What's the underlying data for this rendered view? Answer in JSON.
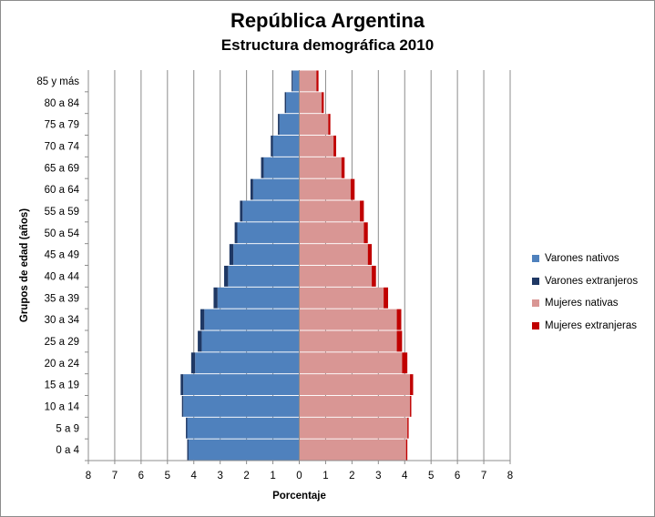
{
  "chart_data": {
    "type": "bar",
    "orientation": "horizontal",
    "stacked": true,
    "title": "República Argentina",
    "subtitle": "Estructura demográfica 2010",
    "xlabel": "Porcentaje",
    "ylabel": "Grupos de edad (años)",
    "xlim": [
      -8,
      8
    ],
    "x_ticks": [
      8,
      7,
      6,
      5,
      4,
      3,
      2,
      1,
      0,
      1,
      2,
      3,
      4,
      5,
      6,
      7,
      8
    ],
    "grid": "vertical",
    "legend_position": "right",
    "categories": [
      "0 a 4",
      "5 a 9",
      "10 a 14",
      "15 a 19",
      "20 a 24",
      "25 a 29",
      "30 a 34",
      "35 a 39",
      "40 a 44",
      "45 a 49",
      "50 a 54",
      "55 a 59",
      "60 a 64",
      "65 a 69",
      "70 a 74",
      "75 a 79",
      "80 a 84",
      "85 y más"
    ],
    "series": [
      {
        "name": "Varones nativos",
        "side": "left",
        "color": "#4f81bd",
        "values": [
          4.2,
          4.25,
          4.4,
          4.4,
          3.95,
          3.7,
          3.6,
          3.1,
          2.7,
          2.5,
          2.35,
          2.15,
          1.75,
          1.35,
          1.0,
          0.75,
          0.5,
          0.25
        ]
      },
      {
        "name": "Varones extranjeros",
        "side": "left",
        "color": "#1f3864",
        "values": [
          0.05,
          0.05,
          0.05,
          0.1,
          0.15,
          0.15,
          0.15,
          0.15,
          0.15,
          0.15,
          0.1,
          0.1,
          0.1,
          0.1,
          0.08,
          0.06,
          0.05,
          0.04
        ]
      },
      {
        "name": "Mujeres nativas",
        "side": "right",
        "color": "#d99694",
        "values": [
          4.05,
          4.1,
          4.2,
          4.2,
          3.9,
          3.7,
          3.7,
          3.2,
          2.75,
          2.6,
          2.45,
          2.3,
          1.95,
          1.6,
          1.3,
          1.1,
          0.85,
          0.65
        ]
      },
      {
        "name": "Mujeres extranjeras",
        "side": "right",
        "color": "#c00000",
        "values": [
          0.05,
          0.05,
          0.05,
          0.12,
          0.2,
          0.2,
          0.17,
          0.17,
          0.16,
          0.15,
          0.15,
          0.15,
          0.15,
          0.12,
          0.1,
          0.08,
          0.08,
          0.08
        ]
      }
    ]
  }
}
